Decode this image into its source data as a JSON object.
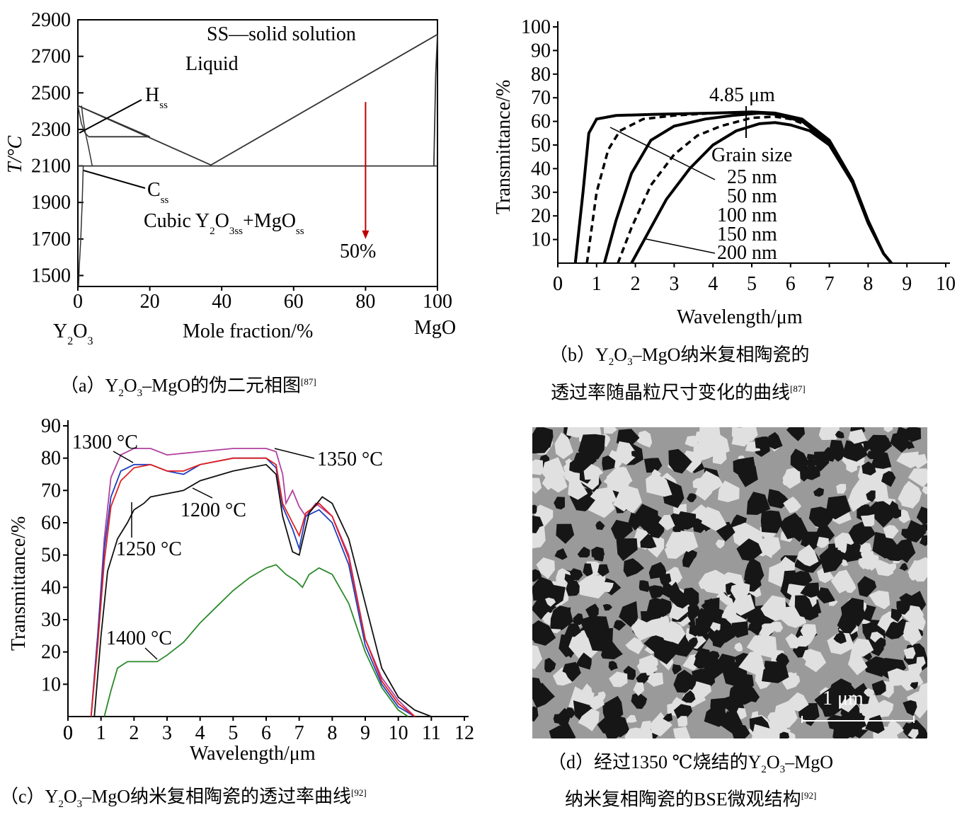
{
  "panel_a": {
    "caption": {
      "prefix": "（a）Y",
      "sub1": "2",
      "mid1": "O",
      "sub2": "3",
      "rest": "–MgO的伪二元相图",
      "ref": "[87]"
    },
    "labels": {
      "ss_note": "SS—solid solution",
      "liquid": "Liquid",
      "h": "H",
      "h_sub": "ss",
      "c": "C",
      "c_sub": "ss",
      "cubic_a": "Cubic Y",
      "cubic_s1": "2",
      "cubic_b": "O",
      "cubic_s2": "3ss",
      "cubic_c": "+MgO",
      "cubic_s3": "ss",
      "pct": "50%",
      "xlabel": "Mole fraction/%",
      "ylabel": "T/°C",
      "y2o3_a": "Y",
      "y2o3_s1": "2",
      "y2o3_b": "O",
      "y2o3_s2": "3",
      "mgo": "MgO"
    },
    "arrow_color": "#c00000"
  },
  "panel_b": {
    "caption_line1": {
      "prefix": "（b）Y",
      "sub1": "2",
      "mid1": "O",
      "sub2": "3",
      "rest": "–MgO纳米复相陶瓷的"
    },
    "caption_line2": {
      "text": "透过率随晶粒尺寸变化的曲线",
      "ref": "[87]"
    },
    "annotations": {
      "peak": "4.85 μm",
      "grain_title": "Grain size",
      "g25": "25 nm",
      "g50": "50 nm",
      "g100": "100 nm",
      "g150": "150 nm",
      "g200": "200 nm"
    }
  },
  "panel_c": {
    "caption": {
      "prefix": "（c）Y",
      "sub1": "2",
      "mid1": "O",
      "sub2": "3",
      "rest": "–MgO纳米复相陶瓷的透过率曲线",
      "ref": "[92]"
    },
    "annotations": {
      "t1300": "1300 °C",
      "t1350": "1350 °C",
      "t1200": "1200 °C",
      "t1250": "1250 °C",
      "t1400": "1400 °C"
    }
  },
  "panel_d": {
    "caption_line1": {
      "prefix": "（d）经过1350 ℃烧结的Y",
      "sub1": "2",
      "mid1": "O",
      "sub2": "3",
      "rest": "–MgO"
    },
    "caption_line2": {
      "text": "纳米复相陶瓷的BSE微观结构",
      "ref": "[92]"
    },
    "scale_label": "1 μm"
  },
  "chart_data": [
    {
      "type": "line",
      "title": "",
      "xlabel": "Mole fraction/%",
      "ylabel": "T/°C",
      "xlim": [
        0,
        100
      ],
      "ylim": [
        1440,
        2900
      ],
      "xticks": [
        0,
        20,
        40,
        60,
        80,
        100
      ],
      "yticks": [
        1500,
        1700,
        1900,
        2100,
        2300,
        2500,
        2700,
        2900
      ],
      "series": [
        {
          "x": [
            0,
            37,
            100
          ],
          "y": [
            2430,
            2105,
            2820
          ]
        },
        {
          "x": [
            0,
            100
          ],
          "y": [
            2100,
            2100
          ]
        },
        {
          "x": [
            3,
            20
          ],
          "y": [
            2260,
            2260
          ]
        },
        {
          "x": [
            0,
            20
          ],
          "y": [
            2430,
            2260
          ]
        }
      ],
      "annotation_arrow": {
        "x": 80,
        "y_from": 2450,
        "y_to": 1700
      }
    },
    {
      "type": "line",
      "title": "",
      "xlabel": "Wavelength/μm",
      "ylabel": "Transmittance/%",
      "xlim": [
        0,
        10
      ],
      "ylim": [
        0,
        100
      ],
      "xticks": [
        0,
        1,
        2,
        3,
        4,
        5,
        6,
        7,
        8,
        9,
        10
      ],
      "yticks": [
        10,
        20,
        30,
        40,
        50,
        60,
        70,
        80,
        90,
        100
      ],
      "series": [
        {
          "name": "25 nm",
          "style": "solid",
          "x": [
            0.45,
            0.65,
            0.8,
            1.0,
            1.5,
            2.5,
            4.0,
            5.0,
            5.6,
            6.3,
            7.0,
            7.6,
            8.0,
            8.4,
            8.6
          ],
          "y": [
            0,
            30,
            55,
            61,
            62.5,
            63,
            63.5,
            64,
            63.5,
            61,
            52,
            35,
            18,
            4,
            0
          ]
        },
        {
          "name": "50 nm",
          "style": "dashed",
          "x": [
            0.75,
            1.0,
            1.3,
            1.6,
            2.2,
            3.0,
            4.0,
            5.0,
            5.6,
            6.3,
            7.0,
            7.6,
            8.0,
            8.4,
            8.6
          ],
          "y": [
            0,
            30,
            48,
            56,
            61,
            62.5,
            63.5,
            64,
            63.5,
            61,
            52,
            35,
            18,
            4,
            0
          ]
        },
        {
          "name": "100 nm",
          "style": "solid",
          "x": [
            1.2,
            1.5,
            1.9,
            2.4,
            3.0,
            3.8,
            4.5,
            5.2,
            5.6,
            6.3,
            7.0,
            7.6,
            8.0,
            8.4,
            8.6
          ],
          "y": [
            0,
            18,
            38,
            52,
            58,
            61,
            62.5,
            63.5,
            63,
            60,
            51,
            34,
            17,
            4,
            0
          ]
        },
        {
          "name": "150 nm",
          "style": "dashed",
          "x": [
            1.55,
            1.9,
            2.4,
            3.0,
            3.6,
            4.2,
            5.0,
            5.6,
            6.0,
            6.5,
            7.0,
            7.6,
            8.0,
            8.4,
            8.6
          ],
          "y": [
            0,
            15,
            33,
            46,
            54,
            58,
            61.5,
            62,
            61,
            58,
            51,
            34,
            17,
            4,
            0
          ]
        },
        {
          "name": "200 nm",
          "style": "solid",
          "x": [
            1.9,
            2.3,
            2.8,
            3.4,
            4.0,
            4.6,
            5.2,
            5.6,
            6.0,
            6.5,
            7.0,
            7.6,
            8.0,
            8.4,
            8.6
          ],
          "y": [
            0,
            12,
            27,
            40,
            50,
            56,
            59,
            59.5,
            58.5,
            56,
            50,
            34,
            17,
            4,
            0
          ]
        }
      ]
    },
    {
      "type": "line",
      "title": "",
      "xlabel": "Wavelength/μm",
      "ylabel": "Transmittance/%",
      "xlim": [
        0,
        12
      ],
      "ylim": [
        0,
        90
      ],
      "xticks": [
        0,
        1,
        2,
        3,
        4,
        5,
        6,
        7,
        8,
        9,
        10,
        11,
        12
      ],
      "yticks": [
        10,
        20,
        30,
        40,
        50,
        60,
        70,
        80,
        90
      ],
      "series": [
        {
          "name": "1350 °C",
          "color": "#b040a0",
          "x": [
            0.7,
            0.9,
            1.1,
            1.3,
            1.6,
            2.0,
            2.5,
            3.0,
            4.0,
            5.0,
            6.0,
            6.3,
            6.5,
            6.6,
            6.8,
            7.0,
            7.2,
            7.5,
            8.0,
            8.5,
            9.0,
            9.5,
            10.0,
            10.5
          ],
          "y": [
            0,
            25,
            55,
            74,
            81,
            83,
            83,
            81,
            82,
            83,
            83,
            82,
            75,
            66,
            70,
            65,
            62,
            66,
            62,
            50,
            24,
            12,
            5,
            0
          ]
        },
        {
          "name": "1300 °C",
          "color": "#1f3fbf",
          "x": [
            0.7,
            0.9,
            1.1,
            1.3,
            1.6,
            2.0,
            2.5,
            3.0,
            3.5,
            4.0,
            5.0,
            6.0,
            6.3,
            6.5,
            6.8,
            7.0,
            7.2,
            7.6,
            8.0,
            8.5,
            9.0,
            9.5,
            10.0,
            10.5
          ],
          "y": [
            0,
            25,
            52,
            68,
            76,
            78,
            78,
            76,
            75,
            78,
            80,
            80,
            77,
            65,
            58,
            52,
            62,
            64,
            60,
            47,
            22,
            10,
            3,
            0
          ]
        },
        {
          "name": "1250 °C",
          "color": "#e02020",
          "x": [
            0.7,
            0.9,
            1.1,
            1.3,
            1.6,
            2.0,
            2.5,
            3.0,
            3.5,
            4.0,
            5.0,
            6.0,
            6.3,
            6.5,
            6.8,
            7.0,
            7.2,
            7.6,
            8.0,
            8.5,
            9.0,
            9.5,
            10.0,
            10.5
          ],
          "y": [
            0,
            22,
            48,
            65,
            73,
            77,
            78,
            76,
            76,
            78,
            80,
            80,
            78,
            66,
            60,
            56,
            63,
            66,
            62,
            49,
            24,
            11,
            4,
            0
          ]
        },
        {
          "name": "1200 °C",
          "color": "#111111",
          "x": [
            0.8,
            1.0,
            1.2,
            1.5,
            1.8,
            2.0,
            2.3,
            2.5,
            3.0,
            3.5,
            4.0,
            5.0,
            6.0,
            6.3,
            6.5,
            6.8,
            7.0,
            7.3,
            7.7,
            8.0,
            8.5,
            9.0,
            9.5,
            10.0,
            10.5,
            11.0
          ],
          "y": [
            0,
            25,
            45,
            55,
            60,
            64,
            66,
            68,
            69,
            70,
            73,
            76,
            78,
            75,
            62,
            51,
            50,
            63,
            68,
            66,
            55,
            35,
            15,
            6,
            2,
            0
          ]
        },
        {
          "name": "1400 °C",
          "color": "#2a8a2a",
          "x": [
            1.1,
            1.3,
            1.5,
            1.8,
            2.2,
            2.7,
            3.0,
            3.5,
            4.0,
            4.5,
            5.0,
            5.5,
            6.0,
            6.3,
            6.6,
            6.9,
            7.1,
            7.3,
            7.6,
            8.0,
            8.5,
            9.0,
            9.5,
            10.0,
            10.3
          ],
          "y": [
            0,
            8,
            15,
            17,
            17,
            17,
            19,
            23,
            29,
            34,
            39,
            43,
            46,
            47,
            44,
            42,
            40,
            44,
            46,
            44,
            35,
            20,
            9,
            2,
            0
          ]
        }
      ]
    }
  ]
}
